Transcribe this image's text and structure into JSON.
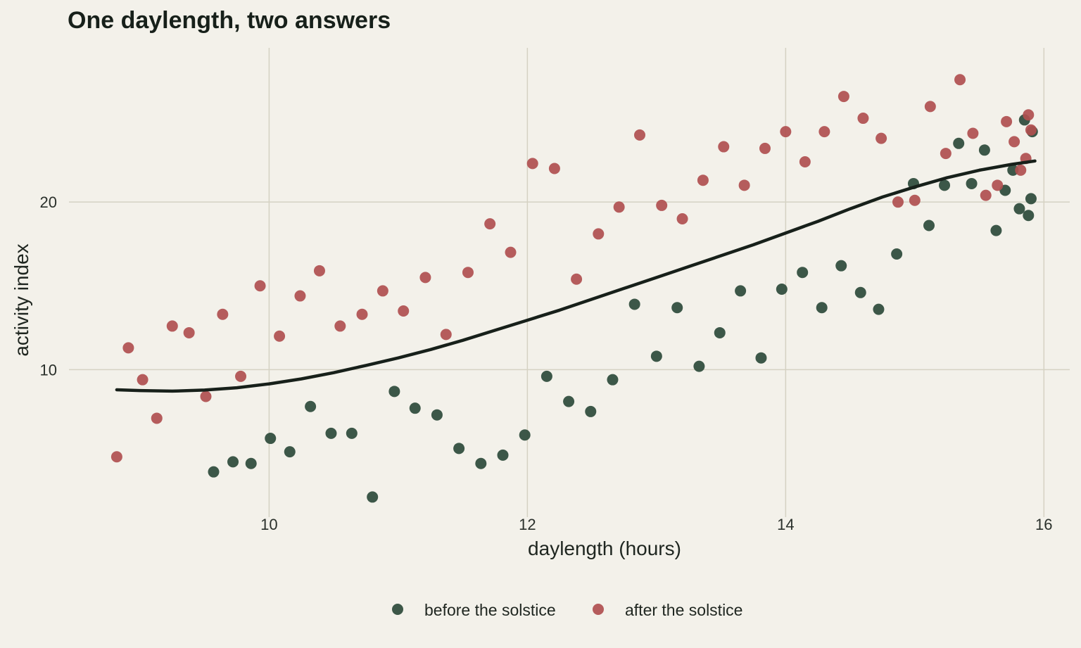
{
  "chart_data": {
    "type": "scatter",
    "title": "One daylength, two answers",
    "xlabel": "daylength (hours)",
    "ylabel": "activity index",
    "xlim": [
      8.45,
      16.2
    ],
    "ylim": [
      1.2,
      29.2
    ],
    "xticks": [
      10,
      12,
      14,
      16
    ],
    "yticks": [
      10,
      20
    ],
    "grid": true,
    "legend_position": "bottom",
    "series": [
      {
        "name": "before the solstice",
        "color": "#2c4a3a",
        "points": [
          [
            9.57,
            3.9
          ],
          [
            9.72,
            4.5
          ],
          [
            9.86,
            4.4
          ],
          [
            10.01,
            5.9
          ],
          [
            10.16,
            5.1
          ],
          [
            10.32,
            7.8
          ],
          [
            10.48,
            6.2
          ],
          [
            10.64,
            6.2
          ],
          [
            10.8,
            2.4
          ],
          [
            10.97,
            8.7
          ],
          [
            11.13,
            7.7
          ],
          [
            11.3,
            7.3
          ],
          [
            11.47,
            5.3
          ],
          [
            11.64,
            4.4
          ],
          [
            11.81,
            4.9
          ],
          [
            11.98,
            6.1
          ],
          [
            12.15,
            9.6
          ],
          [
            12.32,
            8.1
          ],
          [
            12.49,
            7.5
          ],
          [
            12.66,
            9.4
          ],
          [
            12.83,
            13.9
          ],
          [
            13.0,
            10.8
          ],
          [
            13.16,
            13.7
          ],
          [
            13.33,
            10.2
          ],
          [
            13.49,
            12.2
          ],
          [
            13.65,
            14.7
          ],
          [
            13.81,
            10.7
          ],
          [
            13.97,
            14.8
          ],
          [
            14.13,
            15.8
          ],
          [
            14.28,
            13.7
          ],
          [
            14.43,
            16.2
          ],
          [
            14.58,
            14.6
          ],
          [
            14.72,
            13.6
          ],
          [
            14.86,
            16.9
          ],
          [
            14.99,
            21.1
          ],
          [
            15.11,
            18.6
          ],
          [
            15.23,
            21.0
          ],
          [
            15.34,
            23.5
          ],
          [
            15.44,
            21.1
          ],
          [
            15.54,
            23.1
          ],
          [
            15.63,
            18.3
          ],
          [
            15.7,
            20.7
          ],
          [
            15.76,
            21.9
          ],
          [
            15.81,
            19.6
          ],
          [
            15.85,
            24.9
          ],
          [
            15.88,
            19.2
          ],
          [
            15.9,
            20.2
          ],
          [
            15.91,
            24.2
          ]
        ]
      },
      {
        "name": "after the solstice",
        "color": "#b04f4f",
        "points": [
          [
            8.82,
            4.8
          ],
          [
            8.91,
            11.3
          ],
          [
            9.02,
            9.4
          ],
          [
            9.13,
            7.1
          ],
          [
            9.25,
            12.6
          ],
          [
            9.38,
            12.2
          ],
          [
            9.51,
            8.4
          ],
          [
            9.64,
            13.3
          ],
          [
            9.78,
            9.6
          ],
          [
            9.93,
            15.0
          ],
          [
            10.08,
            12.0
          ],
          [
            10.24,
            14.4
          ],
          [
            10.39,
            15.9
          ],
          [
            10.55,
            12.6
          ],
          [
            10.72,
            13.3
          ],
          [
            10.88,
            14.7
          ],
          [
            11.04,
            13.5
          ],
          [
            11.21,
            15.5
          ],
          [
            11.37,
            12.1
          ],
          [
            11.54,
            15.8
          ],
          [
            11.71,
            18.7
          ],
          [
            11.87,
            17.0
          ],
          [
            12.04,
            22.3
          ],
          [
            12.21,
            22.0
          ],
          [
            12.38,
            15.4
          ],
          [
            12.55,
            18.1
          ],
          [
            12.71,
            19.7
          ],
          [
            12.87,
            24.0
          ],
          [
            13.04,
            19.8
          ],
          [
            13.2,
            19.0
          ],
          [
            13.36,
            21.3
          ],
          [
            13.52,
            23.3
          ],
          [
            13.68,
            21.0
          ],
          [
            13.84,
            23.2
          ],
          [
            14.0,
            24.2
          ],
          [
            14.15,
            22.4
          ],
          [
            14.3,
            24.2
          ],
          [
            14.45,
            26.3
          ],
          [
            14.6,
            25.0
          ],
          [
            14.74,
            23.8
          ],
          [
            14.87,
            20.0
          ],
          [
            15.0,
            20.1
          ],
          [
            15.12,
            25.7
          ],
          [
            15.24,
            22.9
          ],
          [
            15.35,
            27.3
          ],
          [
            15.45,
            24.1
          ],
          [
            15.55,
            20.4
          ],
          [
            15.64,
            21.0
          ],
          [
            15.71,
            24.8
          ],
          [
            15.77,
            23.6
          ],
          [
            15.82,
            21.9
          ],
          [
            15.86,
            22.6
          ],
          [
            15.88,
            25.2
          ],
          [
            15.9,
            24.3
          ]
        ]
      }
    ],
    "trend_line": {
      "color": "#17201a",
      "points": [
        [
          8.82,
          8.8
        ],
        [
          9.0,
          8.75
        ],
        [
          9.25,
          8.72
        ],
        [
          9.5,
          8.78
        ],
        [
          9.75,
          8.92
        ],
        [
          10.0,
          9.15
        ],
        [
          10.25,
          9.45
        ],
        [
          10.5,
          9.82
        ],
        [
          10.75,
          10.25
        ],
        [
          11.0,
          10.7
        ],
        [
          11.25,
          11.2
        ],
        [
          11.5,
          11.75
        ],
        [
          11.75,
          12.35
        ],
        [
          12.0,
          12.95
        ],
        [
          12.25,
          13.55
        ],
        [
          12.5,
          14.2
        ],
        [
          12.75,
          14.85
        ],
        [
          13.0,
          15.5
        ],
        [
          13.25,
          16.15
        ],
        [
          13.5,
          16.8
        ],
        [
          13.75,
          17.45
        ],
        [
          14.0,
          18.15
        ],
        [
          14.25,
          18.85
        ],
        [
          14.5,
          19.6
        ],
        [
          14.75,
          20.3
        ],
        [
          15.0,
          20.9
        ],
        [
          15.25,
          21.45
        ],
        [
          15.5,
          21.9
        ],
        [
          15.75,
          22.25
        ],
        [
          15.93,
          22.45
        ]
      ]
    }
  }
}
